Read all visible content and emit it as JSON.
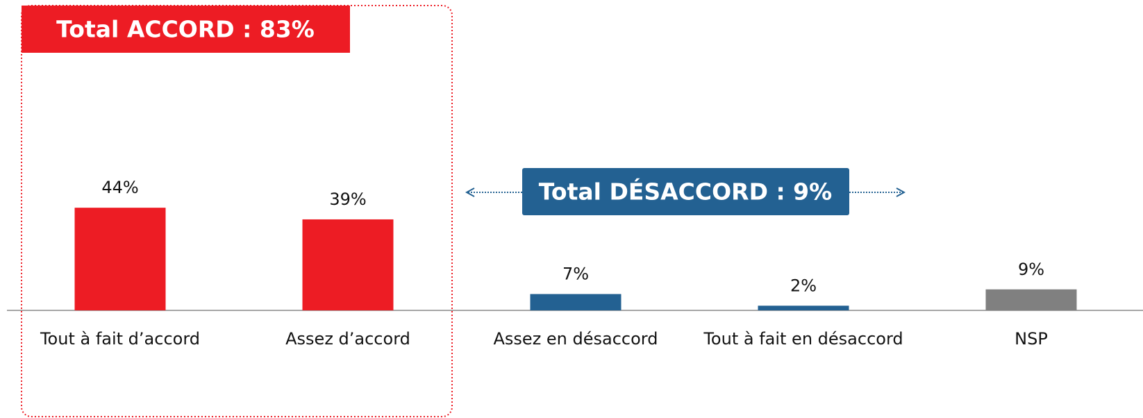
{
  "chart_data": {
    "type": "bar",
    "categories": [
      "Tout à fait d’accord",
      "Assez d’accord",
      "Assez en désaccord",
      "Tout à fait en désaccord",
      "NSP"
    ],
    "values": [
      44,
      39,
      7,
      2,
      9
    ],
    "value_labels": [
      "44%",
      "39%",
      "7%",
      "2%",
      "9%"
    ],
    "colors": [
      "#ed1c24",
      "#ed1c24",
      "#236192",
      "#236192",
      "#808080"
    ],
    "annotations": [
      "Total ACCORD : 83%",
      "Total DÉSACCORD : 9%"
    ]
  }
}
